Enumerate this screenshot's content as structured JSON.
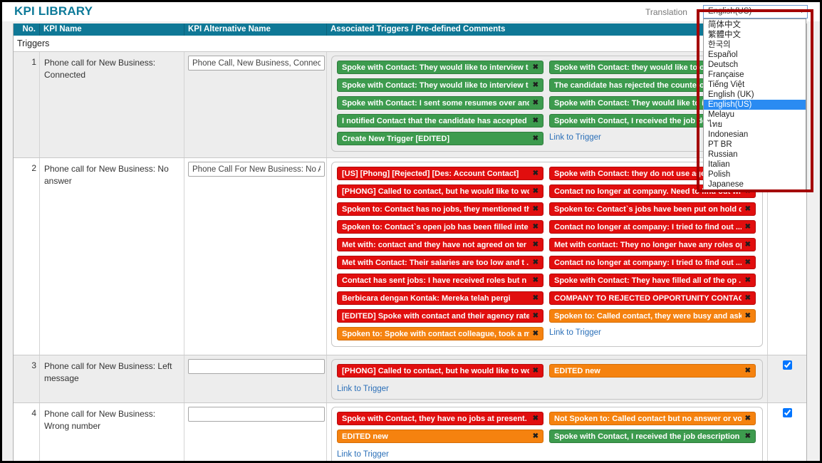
{
  "page": {
    "title": "KPI LIBRARY",
    "translation_label": "Translation"
  },
  "colors": {
    "header_teal": "#0f7896",
    "title_teal": "#0d7a99",
    "chip_green": "#3d9b4e",
    "chip_red": "#e10e0e",
    "chip_orange": "#f5820f",
    "link_blue": "#2a6fb8",
    "dropdown_highlight_blue": "#2a8bf2",
    "annotation_red": "#a40000",
    "row_alt_gray": "#ededed"
  },
  "language_dropdown": {
    "selected": "English(US)",
    "highlighted_index": 8,
    "options": [
      "简体中文",
      "繁體中文",
      "한국의",
      "Español",
      "Deutsch",
      "Française",
      "Tiếng Việt",
      "English (UK)",
      "English(US)",
      "Melayu",
      "ไทย",
      "Indonesian",
      "PT BR",
      "Russian",
      "Italian",
      "Polish",
      "Japanese"
    ]
  },
  "table": {
    "headers": [
      "No.",
      "KPI Name",
      "KPI Alternative Name",
      "Associated Triggers / Pre-defined Comments"
    ],
    "group_label": "Triggers",
    "link_label": "Link to Trigger",
    "close_glyph": "✖",
    "rows": [
      {
        "no": "1",
        "kpi_name": "Phone call for New Business: Connected",
        "alt_name_value": "Phone Call, New Business, Connected",
        "checked": null,
        "link": "right",
        "columns": [
          [
            {
              "text": "Spoke with Contact: They would like to interview t ...",
              "color": "green"
            },
            {
              "text": "Spoke with Contact: They would like to interview t ...",
              "color": "green"
            },
            {
              "text": "Spoke with Contact: I sent some resumes over and t",
              "color": "green"
            },
            {
              "text": "I notified Contact that the candidate has accepted ...",
              "color": "green"
            },
            {
              "text": "Create New Trigger [EDITED]",
              "color": "green"
            }
          ],
          [
            {
              "text": "Spoke with Contact: they would like to offer",
              "color": "green"
            },
            {
              "text": "The candidate has rejected the counteroffer",
              "color": "green"
            },
            {
              "text": "Spoke with Contact: They would like to interv",
              "color": "green"
            },
            {
              "text": "Spoke with Contact, I received the job descrip",
              "color": "green"
            }
          ]
        ]
      },
      {
        "no": "2",
        "kpi_name": "Phone call for New Business: No answer",
        "alt_name_value": "Phone Call For New Business: No Answ",
        "checked": null,
        "link": "right",
        "columns": [
          [
            {
              "text": "[US] [Phong] [Rejected] [Des: Account Contact]",
              "color": "red"
            },
            {
              "text": "[PHONG] Called to contact, but he would like to wo ...",
              "color": "red"
            },
            {
              "text": "Spoken to: Contact has no jobs, they mentioned the",
              "color": "red"
            },
            {
              "text": "Spoken to: Contact`s open job has been filled inte ...",
              "color": "red"
            },
            {
              "text": "Met with: contact and they have not agreed on ter ...",
              "color": "red"
            },
            {
              "text": "Met with Contact: Their salaries are too low and t ...",
              "color": "red"
            },
            {
              "text": "Contact has sent jobs: I have received roles but n ...",
              "color": "red"
            },
            {
              "text": "Berbicara dengan Kontak: Mereka telah pergi",
              "color": "red"
            },
            {
              "text": "[EDITED] Spoke with contact and their agency rates ...",
              "color": "red"
            },
            {
              "text": "Spoken to: Spoke with contact colleague, took a me",
              "color": "orange"
            }
          ],
          [
            {
              "text": "Spoke with Contact: they do not use agencies",
              "color": "red"
            },
            {
              "text": "Contact no longer at company. Need to find out who",
              "color": "red"
            },
            {
              "text": "Spoken to: Contact`s jobs have been put on hold du",
              "color": "red"
            },
            {
              "text": "Contact no longer at company: I tried to find out ...",
              "color": "red"
            },
            {
              "text": "Met with contact: They no longer have any roles op ...",
              "color": "red"
            },
            {
              "text": "Contact no longer at company: I tried to find out ...",
              "color": "red"
            },
            {
              "text": "Spoke with Contact: They have filled all of the op ...",
              "color": "red"
            },
            {
              "text": "COMPANY TO REJECTED OPPORTUNITY CONTACTS",
              "color": "red"
            },
            {
              "text": "Spoken to: Called contact, they were busy and aske ...",
              "color": "orange"
            }
          ]
        ]
      },
      {
        "no": "3",
        "kpi_name": "Phone call for New Business: Left message",
        "alt_name_value": "",
        "checked": true,
        "link": "below",
        "columns": [
          [
            {
              "text": "[PHONG] Called to contact, but he would like to wo ...",
              "color": "red"
            }
          ],
          [
            {
              "text": "EDITED new",
              "color": "orange"
            }
          ]
        ]
      },
      {
        "no": "4",
        "kpi_name": "Phone call for New Business: Wrong number",
        "alt_name_value": "",
        "checked": true,
        "link": "below",
        "columns": [
          [
            {
              "text": "Spoke with Contact, they have no jobs at present. ...",
              "color": "red"
            },
            {
              "text": "EDITED new",
              "color": "orange"
            }
          ],
          [
            {
              "text": "Not Spoken to: Called contact but no answer or voi ...",
              "color": "orange"
            },
            {
              "text": "Spoke with Contact, I received the job description ...",
              "color": "green"
            }
          ]
        ]
      }
    ]
  }
}
